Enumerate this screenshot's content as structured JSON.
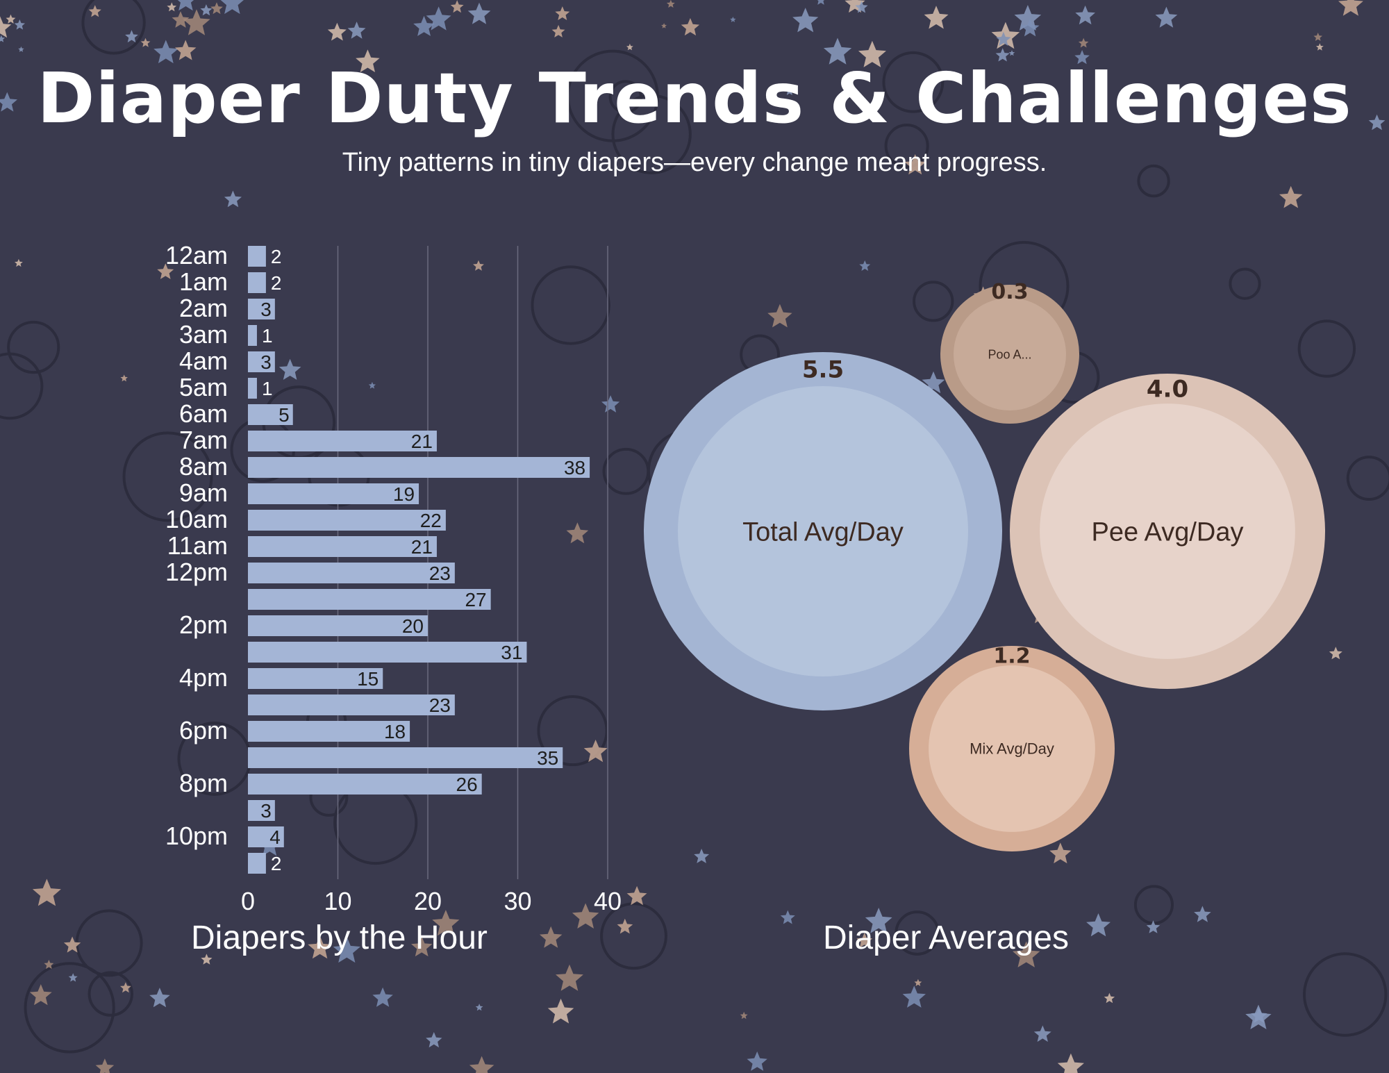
{
  "title": "Diaper Duty Trends & Challenges",
  "subtitle": "Tiny patterns in tiny diapers—every change meant progress.",
  "colors": {
    "background": "#3a3a4e",
    "bar": "#a4b5d6",
    "text": "#ffffff",
    "label_dark": "#1e1e1e"
  },
  "chart_data": [
    {
      "type": "bar",
      "orientation": "horizontal",
      "title": "Diapers by the Hour",
      "categories": [
        "12am",
        "1am",
        "2am",
        "3am",
        "4am",
        "5am",
        "6am",
        "7am",
        "8am",
        "9am",
        "10am",
        "11am",
        "12pm",
        "",
        "2pm",
        "",
        "4pm",
        "",
        "6pm",
        "",
        "8pm",
        "",
        "10pm",
        ""
      ],
      "values": [
        2,
        2,
        3,
        1,
        3,
        1,
        5,
        21,
        38,
        19,
        22,
        21,
        23,
        27,
        20,
        31,
        15,
        23,
        18,
        35,
        26,
        3,
        4,
        2
      ],
      "xlim": [
        0,
        40
      ],
      "xticks": [
        0,
        10,
        20,
        30,
        40
      ],
      "grid": true
    },
    {
      "type": "bubble",
      "title": "Diaper Averages",
      "series": [
        {
          "name": "Total Avg/Day",
          "value": 5.5,
          "label": "5.5",
          "outer": "#a4b5d3",
          "inner": "#b4c4dc"
        },
        {
          "name": "Pee Avg/Day",
          "value": 4.0,
          "label": "4.0",
          "outer": "#dcc3b6",
          "inner": "#e7d3ca"
        },
        {
          "name": "Mix Avg/Day",
          "value": 1.2,
          "label": "1.2",
          "outer": "#d6ae97",
          "inner": "#e4c4b1"
        },
        {
          "name": "Poo A...",
          "value": 0.3,
          "label": "0.3",
          "outer": "#b99b88",
          "inner": "#c7aa98"
        }
      ]
    }
  ]
}
